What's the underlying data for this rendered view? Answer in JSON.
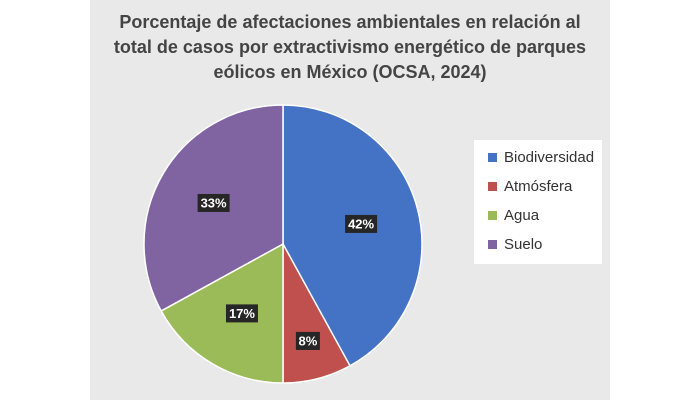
{
  "chart_data": {
    "type": "pie",
    "title_lines": [
      "Porcentaje de afectaciones ambientales en relación al",
      "total de casos por extractivismo energético de parques",
      "eólicos en México (OCSA, 2024)"
    ],
    "categories": [
      "Biodiversidad",
      "Atmósfera",
      "Agua",
      "Suelo"
    ],
    "values": [
      42,
      8,
      17,
      33
    ],
    "labels": [
      "42%",
      "8%",
      "17%",
      "33%"
    ],
    "colors": [
      "#4472c4",
      "#c0504d",
      "#9bbb59",
      "#8064a2"
    ],
    "legend_position": "right",
    "start": "12 o'clock, clockwise"
  }
}
